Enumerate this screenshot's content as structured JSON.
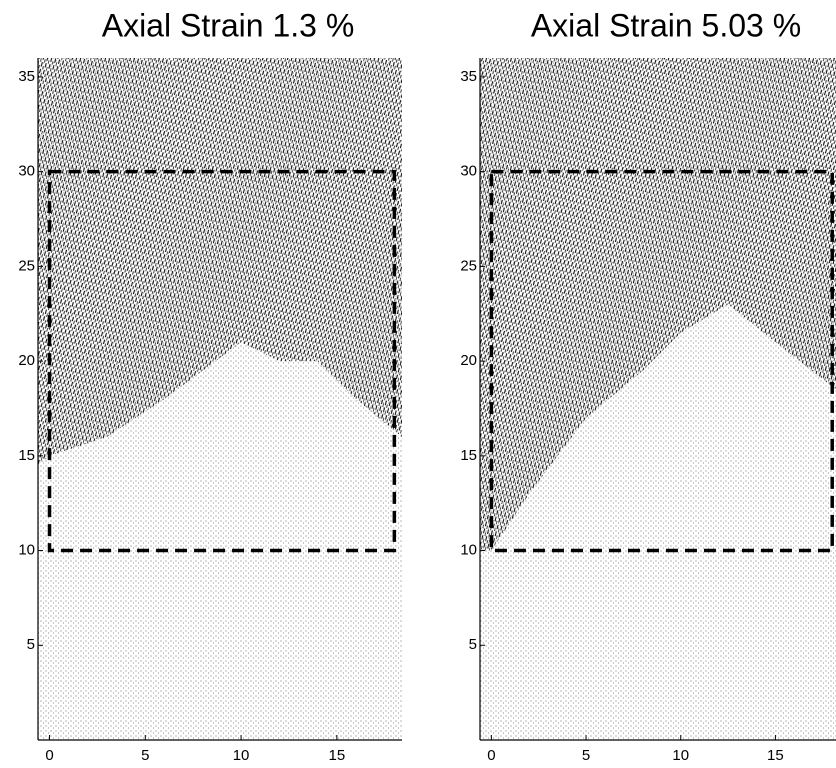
{
  "chart_data": [
    {
      "type": "quiver",
      "title": "Axial Strain 1.3 %",
      "xlim": [
        -0.6,
        18.4
      ],
      "ylim": [
        0,
        36
      ],
      "xticks": [
        0,
        5,
        10,
        15
      ],
      "yticks": [
        5,
        10,
        15,
        20,
        25,
        30,
        35
      ],
      "box": {
        "x": [
          0,
          18
        ],
        "y": [
          10,
          30
        ]
      },
      "zone": {
        "x": [
          -0.6,
          0,
          3,
          6,
          8,
          10,
          12,
          14,
          16,
          18.4
        ],
        "y": [
          14.5,
          15,
          16,
          18,
          19.5,
          21,
          20,
          20,
          18,
          16
        ]
      }
    },
    {
      "type": "quiver",
      "title": "Axial Strain 5.03 %",
      "xlim": [
        -0.6,
        18.2
      ],
      "ylim": [
        0,
        36
      ],
      "xticks": [
        0,
        5,
        10,
        15
      ],
      "yticks": [
        5,
        10,
        15,
        20,
        25,
        30,
        35
      ],
      "box": {
        "x": [
          0,
          18
        ],
        "y": [
          10,
          30
        ]
      },
      "zone": {
        "x": [
          -0.6,
          0,
          2,
          5,
          8,
          10,
          12.5,
          15,
          18.2
        ],
        "y": [
          10,
          10,
          13,
          17,
          19.5,
          21.5,
          23,
          21,
          18.5
        ]
      }
    }
  ]
}
